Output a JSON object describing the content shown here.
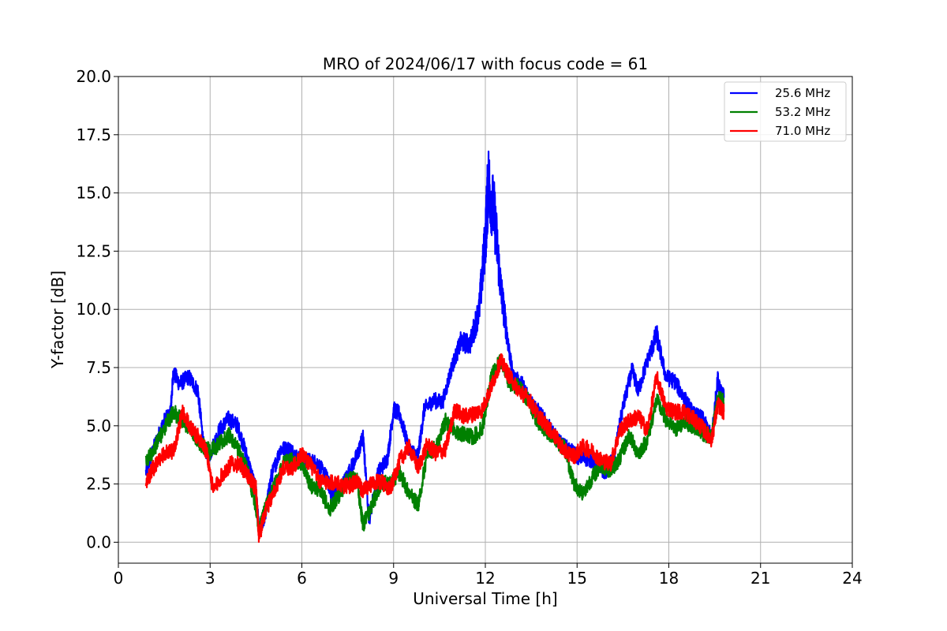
{
  "chart_data": {
    "type": "line",
    "title": "MRO of 2024/06/17 with focus code = 61",
    "xlabel": "Universal Time [h]",
    "ylabel": "Y-factor [dB]",
    "xlim": [
      0,
      24
    ],
    "ylim": [
      -0.9,
      20.0
    ],
    "x_ticks": [
      0,
      3,
      6,
      9,
      12,
      15,
      18,
      21,
      24
    ],
    "x_tick_labels": [
      "0",
      "3",
      "6",
      "9",
      "12",
      "15",
      "18",
      "21",
      "24"
    ],
    "y_ticks": [
      0.0,
      2.5,
      5.0,
      7.5,
      10.0,
      12.5,
      15.0,
      17.5,
      20.0
    ],
    "y_tick_labels": [
      "0.0",
      "2.5",
      "5.0",
      "7.5",
      "10.0",
      "12.5",
      "15.0",
      "17.5",
      "20.0"
    ],
    "grid": true,
    "legend_position": "top-right",
    "series": [
      {
        "name": "25.6 MHz",
        "color": "#0000ff",
        "x": [
          0.9,
          1.2,
          1.5,
          1.7,
          1.8,
          2.0,
          2.3,
          2.6,
          2.8,
          3.0,
          3.3,
          3.6,
          3.9,
          4.2,
          4.5,
          4.6,
          4.8,
          5.0,
          5.3,
          5.6,
          5.9,
          6.2,
          6.5,
          6.8,
          7.0,
          7.2,
          7.5,
          7.8,
          8.0,
          8.2,
          8.5,
          8.8,
          9.0,
          9.2,
          9.5,
          9.8,
          10.0,
          10.3,
          10.6,
          10.9,
          11.2,
          11.5,
          11.8,
          12.0,
          12.1,
          12.3,
          12.5,
          12.7,
          12.9,
          13.2,
          13.5,
          13.8,
          14.1,
          14.4,
          14.7,
          15.0,
          15.3,
          15.6,
          15.9,
          16.2,
          16.5,
          16.8,
          17.0,
          17.3,
          17.6,
          17.9,
          18.2,
          18.5,
          18.8,
          19.1,
          19.4,
          19.6,
          19.8
        ],
        "y": [
          3.0,
          4.2,
          5.2,
          5.5,
          7.3,
          6.8,
          7.1,
          6.5,
          4.0,
          3.8,
          4.8,
          5.3,
          5.0,
          3.7,
          2.2,
          0.4,
          1.2,
          2.8,
          4.0,
          4.0,
          3.6,
          3.5,
          3.4,
          2.8,
          2.0,
          2.1,
          2.9,
          3.7,
          4.5,
          1.0,
          3.0,
          3.6,
          5.7,
          5.5,
          4.0,
          3.7,
          5.7,
          6.1,
          6.0,
          7.5,
          8.6,
          8.5,
          10.0,
          13.0,
          15.5,
          14.0,
          11.0,
          9.0,
          7.1,
          6.8,
          6.0,
          5.5,
          4.9,
          4.3,
          4.0,
          3.7,
          3.6,
          3.5,
          3.0,
          3.6,
          5.8,
          7.4,
          6.5,
          7.8,
          8.9,
          7.1,
          6.9,
          6.2,
          5.5,
          5.3,
          4.5,
          7.0,
          6.2
        ]
      },
      {
        "name": "53.2 MHz",
        "color": "#008000",
        "x": [
          0.9,
          1.2,
          1.5,
          1.8,
          2.1,
          2.4,
          2.7,
          3.0,
          3.3,
          3.6,
          3.9,
          4.2,
          4.5,
          4.6,
          4.8,
          5.1,
          5.4,
          5.7,
          6.0,
          6.3,
          6.6,
          6.9,
          7.2,
          7.5,
          7.8,
          8.0,
          8.3,
          8.6,
          8.9,
          9.2,
          9.5,
          9.8,
          10.1,
          10.4,
          10.7,
          11.0,
          11.3,
          11.6,
          11.9,
          12.2,
          12.5,
          12.8,
          13.1,
          13.4,
          13.7,
          14.0,
          14.3,
          14.6,
          14.9,
          15.2,
          15.5,
          15.8,
          16.1,
          16.4,
          16.7,
          17.0,
          17.3,
          17.6,
          17.9,
          18.2,
          18.5,
          18.8,
          19.1,
          19.4,
          19.6,
          19.8
        ],
        "y": [
          3.4,
          4.1,
          4.9,
          5.6,
          5.2,
          4.8,
          4.2,
          3.9,
          4.2,
          4.6,
          4.0,
          3.2,
          1.5,
          0.5,
          1.4,
          2.4,
          3.4,
          3.5,
          3.4,
          2.4,
          2.3,
          1.4,
          2.0,
          2.7,
          2.7,
          0.7,
          1.6,
          2.6,
          2.5,
          3.0,
          2.1,
          1.6,
          3.8,
          4.1,
          5.2,
          4.8,
          4.6,
          4.5,
          4.9,
          7.1,
          7.8,
          6.8,
          6.7,
          6.1,
          5.2,
          4.8,
          4.4,
          4.0,
          2.5,
          2.1,
          2.8,
          3.3,
          3.1,
          3.6,
          4.6,
          3.8,
          4.4,
          6.1,
          5.3,
          4.8,
          5.2,
          5.0,
          4.7,
          4.5,
          6.2,
          6.0
        ]
      },
      {
        "name": "71.0 MHz",
        "color": "#ff0000",
        "x": [
          0.9,
          1.2,
          1.5,
          1.8,
          2.1,
          2.4,
          2.7,
          2.9,
          3.1,
          3.4,
          3.7,
          4.0,
          4.3,
          4.5,
          4.6,
          4.8,
          5.1,
          5.4,
          5.7,
          6.0,
          6.3,
          6.6,
          6.9,
          7.2,
          7.5,
          7.8,
          8.0,
          8.3,
          8.6,
          8.9,
          9.2,
          9.5,
          9.8,
          10.1,
          10.4,
          10.7,
          11.0,
          11.3,
          11.6,
          11.9,
          12.2,
          12.5,
          12.8,
          13.1,
          13.4,
          13.7,
          14.0,
          14.3,
          14.6,
          14.9,
          15.2,
          15.5,
          15.8,
          16.1,
          16.4,
          16.7,
          17.0,
          17.3,
          17.6,
          17.9,
          18.2,
          18.5,
          18.8,
          19.1,
          19.4,
          19.6,
          19.8
        ],
        "y": [
          2.6,
          3.3,
          3.8,
          3.9,
          5.6,
          4.8,
          4.4,
          3.8,
          2.2,
          2.9,
          3.4,
          3.3,
          2.7,
          2.3,
          0.2,
          1.3,
          2.2,
          3.2,
          3.2,
          3.8,
          3.3,
          2.6,
          2.6,
          2.5,
          2.4,
          2.6,
          2.2,
          2.5,
          2.6,
          2.3,
          3.5,
          4.1,
          3.2,
          4.2,
          3.8,
          4.0,
          5.7,
          5.4,
          5.5,
          5.7,
          6.7,
          7.8,
          7.1,
          6.5,
          6.2,
          5.5,
          5.0,
          4.5,
          3.9,
          3.7,
          4.1,
          3.9,
          3.5,
          3.4,
          4.8,
          5.2,
          5.4,
          4.8,
          7.1,
          5.8,
          5.6,
          5.6,
          5.3,
          4.9,
          4.4,
          5.9,
          5.6
        ]
      }
    ]
  }
}
